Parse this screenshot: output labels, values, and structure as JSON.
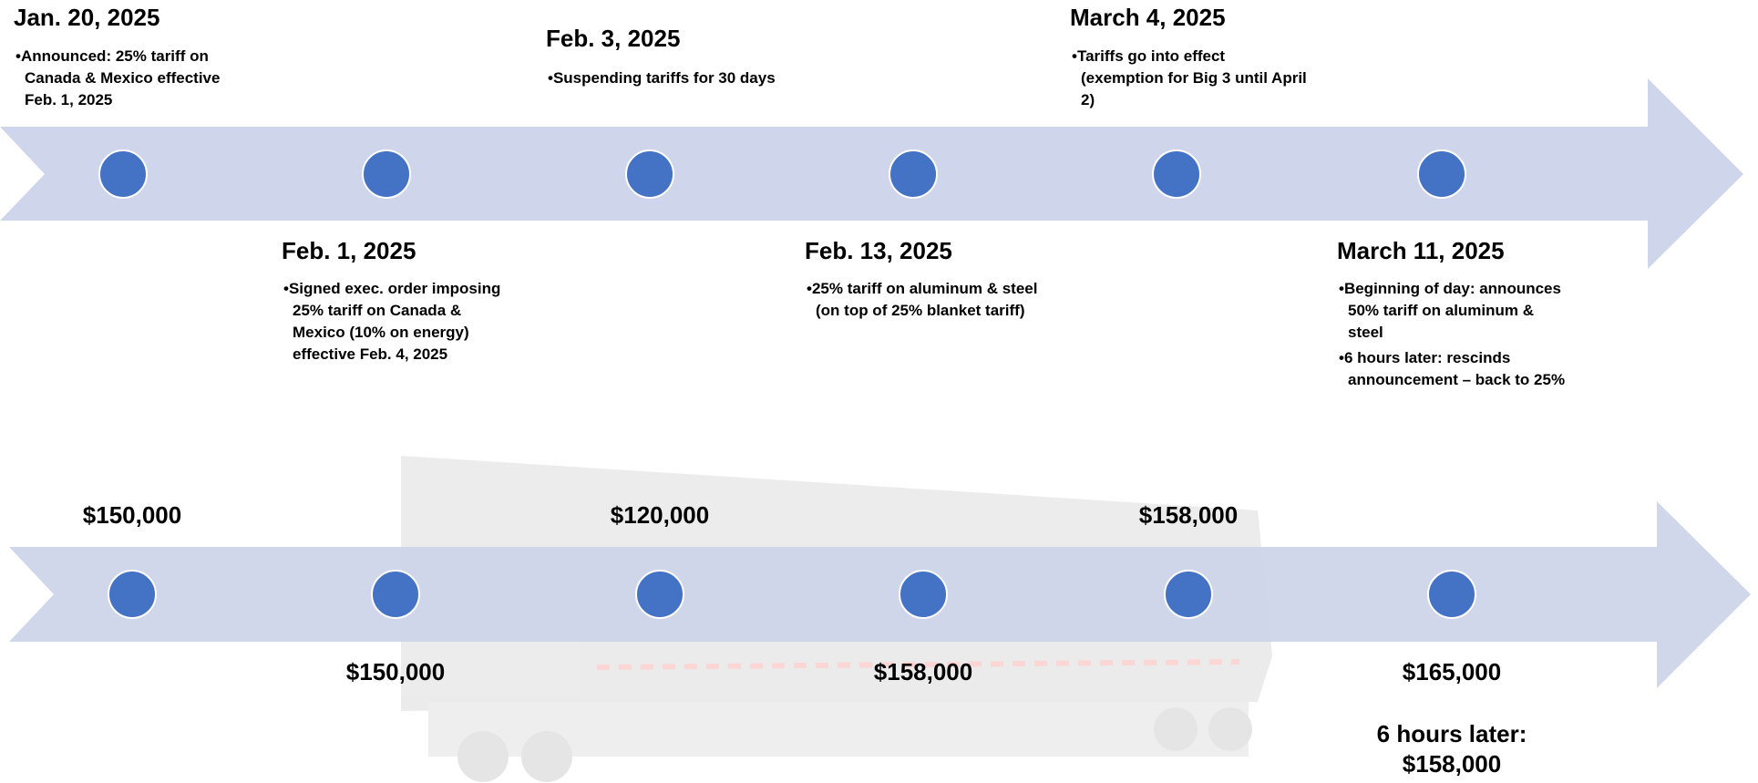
{
  "events": [
    {
      "date": "Jan. 20, 2025",
      "bullets": [
        "Announced: 25% tariff on Canada & Mexico effective Feb. 1, 2025"
      ]
    },
    {
      "date": "Feb. 1, 2025",
      "bullets": [
        "Signed exec. order imposing 25% tariff on Canada & Mexico (10% on energy) effective Feb. 4, 2025"
      ]
    },
    {
      "date": "Feb. 3, 2025",
      "bullets": [
        "Suspending tariffs for 30 days"
      ]
    },
    {
      "date": "Feb. 13, 2025",
      "bullets": [
        "25% tariff on aluminum & steel (on top of 25% blanket tariff)"
      ]
    },
    {
      "date": "March 4, 2025",
      "bullets": [
        "Tariffs go into effect (exemption for Big 3 until April 2)"
      ]
    },
    {
      "date": "March 11, 2025",
      "bullets": [
        "Beginning of day: announces 50% tariff on aluminum & steel",
        "6 hours later: rescinds announcement – back to 25%"
      ]
    }
  ],
  "prices": [
    "$150,000",
    "$150,000",
    "$120,000",
    "$158,000",
    "$158,000",
    "$165,000"
  ],
  "price_note": [
    "6 hours later:",
    "$158,000"
  ]
}
